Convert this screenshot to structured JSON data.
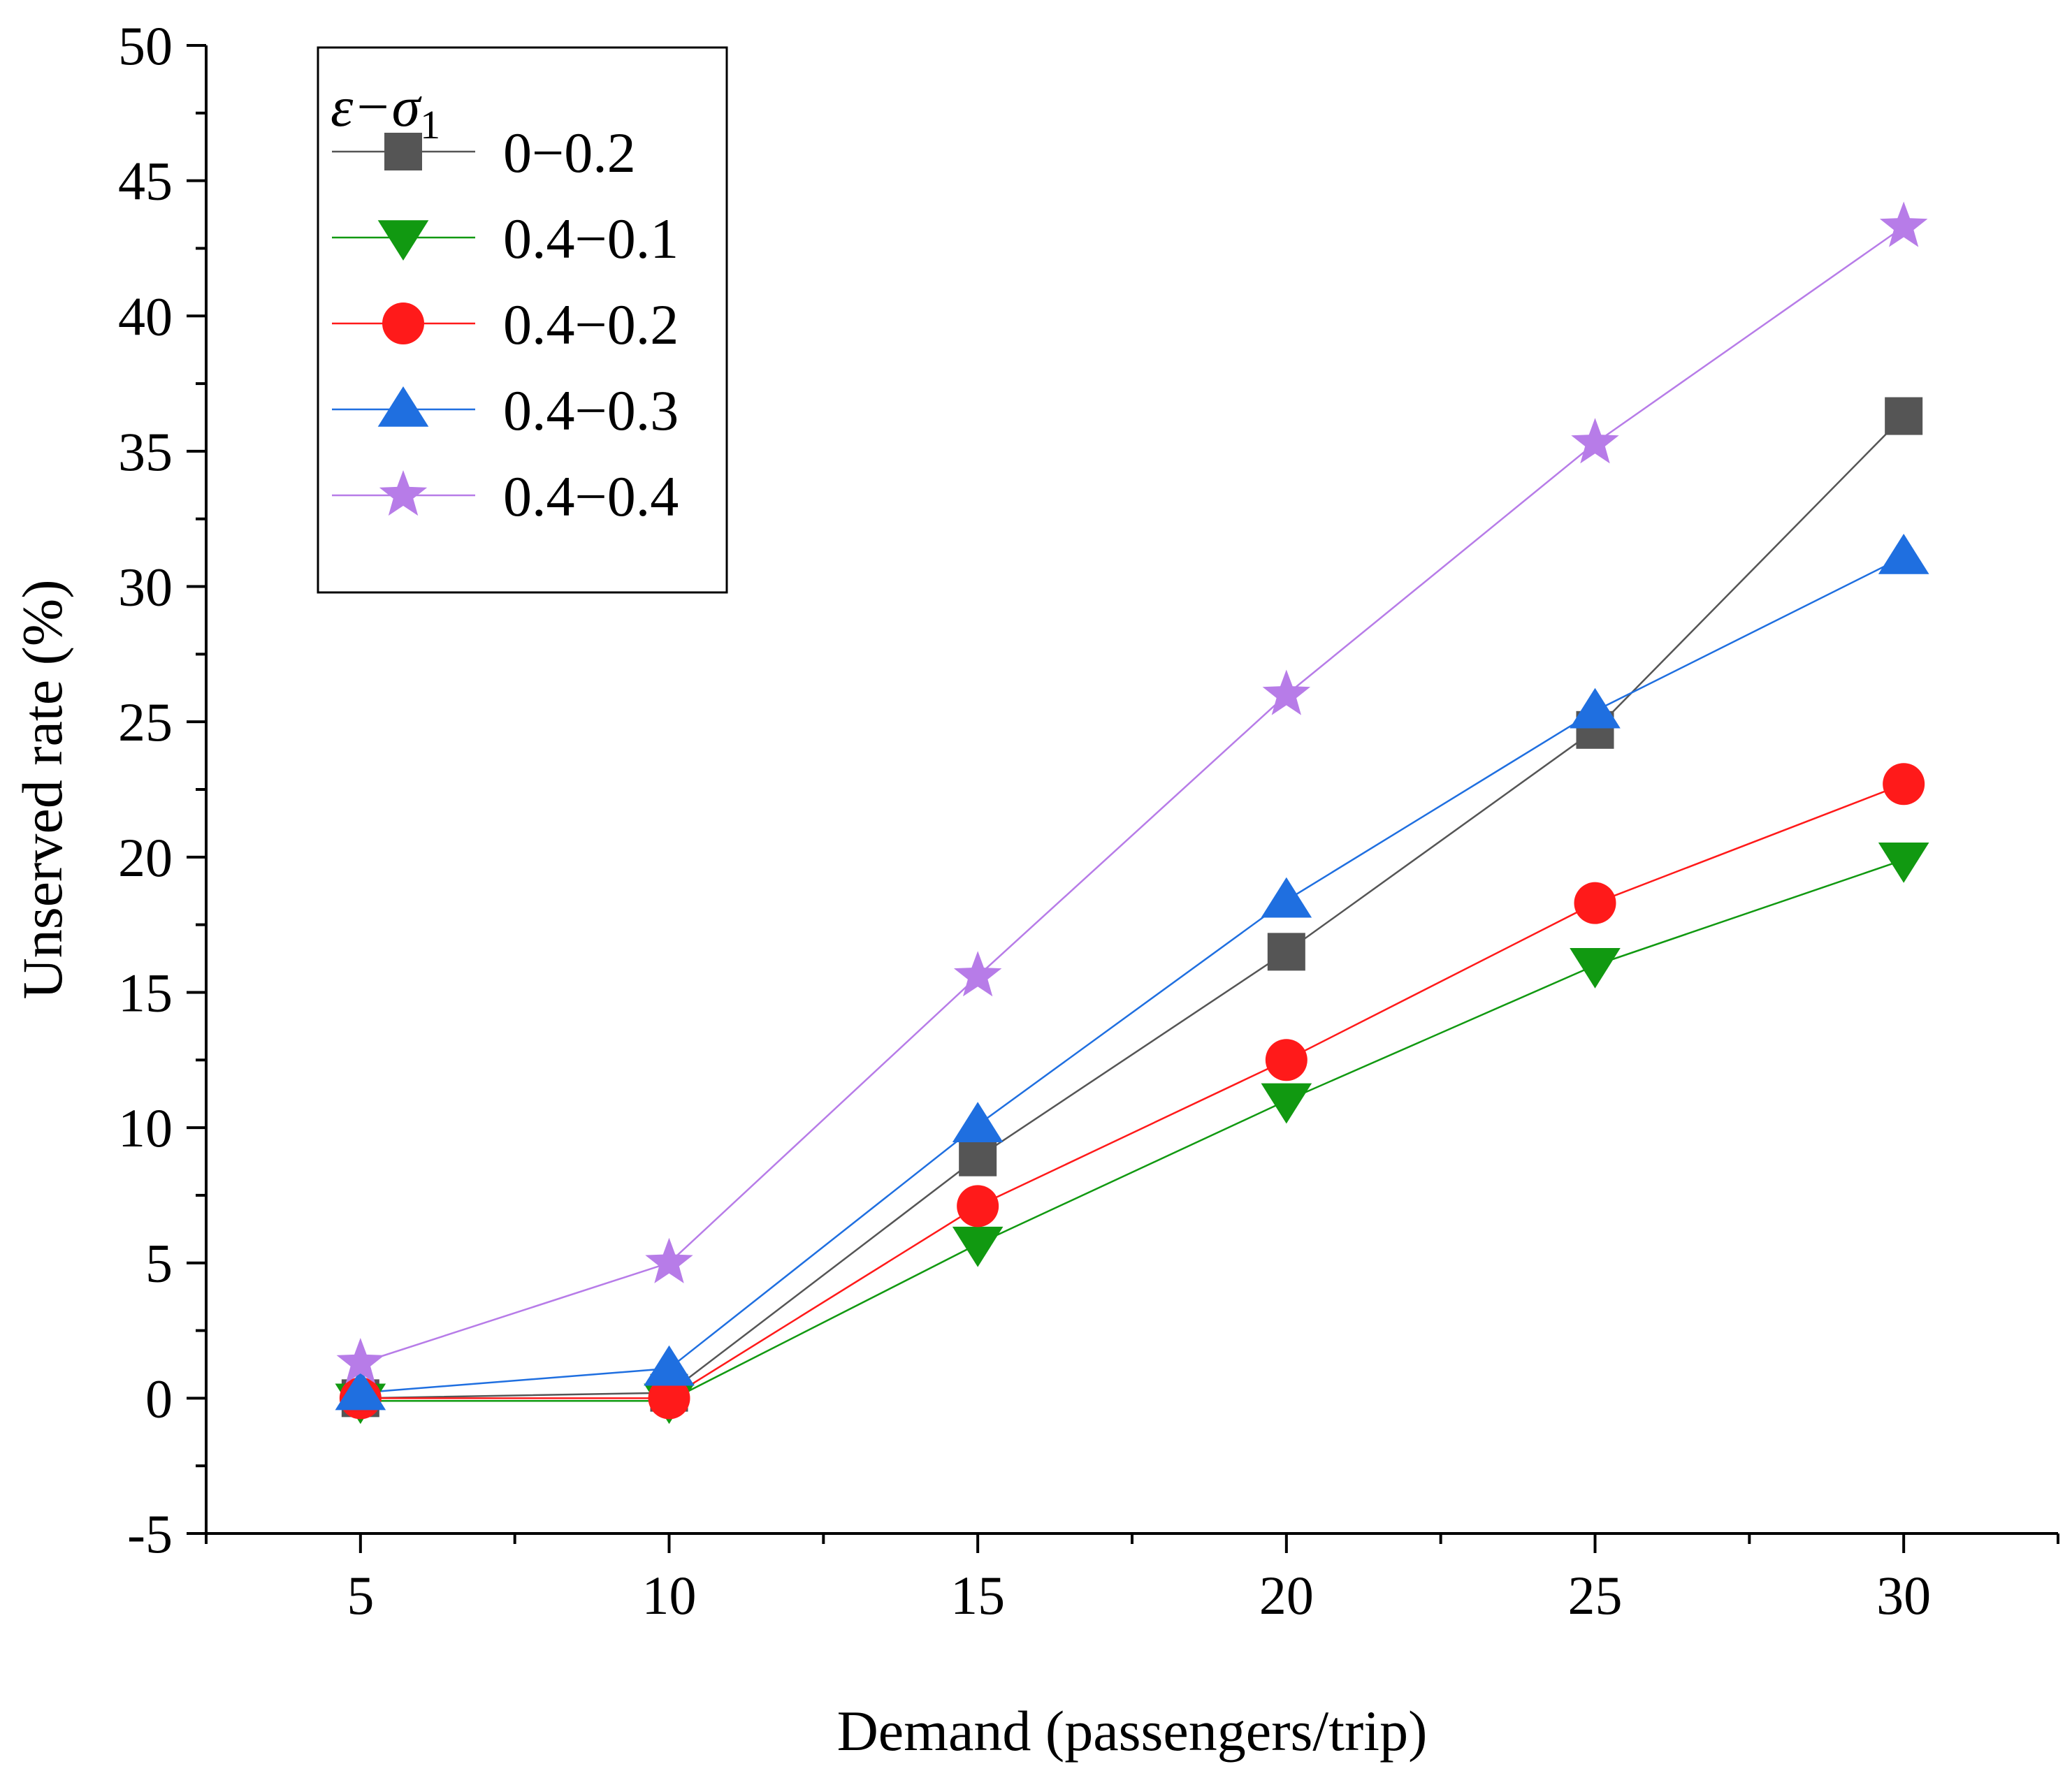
{
  "chart_data": {
    "type": "line",
    "title": "",
    "xlabel": "Demand (passengers/trip)",
    "ylabel": "Unserved rate (%)",
    "x": [
      5,
      10,
      15,
      20,
      25,
      30
    ],
    "xlim": [
      2.5,
      32.5
    ],
    "ylim": [
      -5,
      50
    ],
    "xticks": [
      "5",
      "10",
      "15",
      "20",
      "25",
      "30"
    ],
    "yticks": [
      "-5",
      "0",
      "5",
      "10",
      "15",
      "20",
      "25",
      "30",
      "35",
      "40",
      "45",
      "50"
    ],
    "grid": false,
    "legend": {
      "position": "top-left",
      "title": "ε−σ",
      "title_subscript": "1"
    },
    "series": [
      {
        "name": "0−0.2",
        "color": "#555555",
        "marker": "square",
        "values": [
          0,
          0.2,
          8.9,
          16.5,
          24.7,
          36.3
        ]
      },
      {
        "name": "0.4−0.1",
        "color": "#119911",
        "marker": "triangle-down",
        "values": [
          -0.1,
          -0.1,
          5.7,
          11.0,
          16.0,
          19.9
        ]
      },
      {
        "name": "0.4−0.2",
        "color": "#ff1a1a",
        "marker": "circle",
        "values": [
          0,
          0,
          7.1,
          12.5,
          18.3,
          22.7
        ]
      },
      {
        "name": "0.4−0.3",
        "color": "#1f6fe0",
        "marker": "triangle-up",
        "values": [
          0.2,
          1.1,
          10.1,
          18.4,
          25.4,
          31.1
        ]
      },
      {
        "name": "0.4−0.4",
        "color": "#b77ce8",
        "marker": "star",
        "values": [
          1.3,
          5.0,
          15.6,
          26.0,
          35.3,
          43.3
        ]
      }
    ]
  }
}
